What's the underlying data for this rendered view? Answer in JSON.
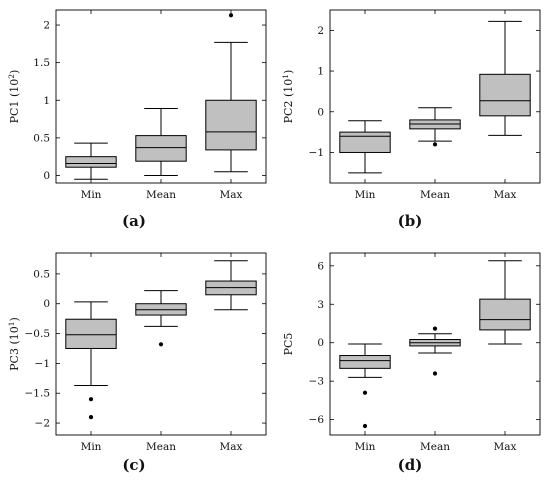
{
  "chart_data": [
    {
      "type": "box",
      "panel_label": "(a)",
      "ylabel": "PC1 (10",
      "ylabel_sup": "2",
      "ylabel_close": ")",
      "categories": [
        "Min",
        "Mean",
        "Max"
      ],
      "yticks": [
        "0",
        "0.5",
        "1",
        "1.5",
        "2"
      ],
      "ytick_values": [
        0,
        0.5,
        1,
        1.5,
        2
      ],
      "ylim": [
        -0.1,
        2.2
      ],
      "boxes": [
        {
          "whisker_low": -0.05,
          "q1": 0.11,
          "median": 0.16,
          "q3": 0.25,
          "whisker_high": 0.43,
          "outliers": []
        },
        {
          "whisker_low": 0.0,
          "q1": 0.19,
          "median": 0.37,
          "q3": 0.53,
          "whisker_high": 0.89,
          "outliers": []
        },
        {
          "whisker_low": 0.05,
          "q1": 0.34,
          "median": 0.58,
          "q3": 1.0,
          "whisker_high": 1.77,
          "outliers": [
            2.13
          ]
        }
      ]
    },
    {
      "type": "box",
      "panel_label": "(b)",
      "ylabel": "PC2 (10",
      "ylabel_sup": "1",
      "ylabel_close": ")",
      "categories": [
        "Min",
        "Mean",
        "Max"
      ],
      "yticks": [
        "−1",
        "0",
        "1",
        "2"
      ],
      "ytick_values": [
        -1,
        0,
        1,
        2
      ],
      "ylim": [
        -1.75,
        2.5
      ],
      "boxes": [
        {
          "whisker_low": -1.5,
          "q1": -1.0,
          "median": -0.6,
          "q3": -0.5,
          "whisker_high": -0.22,
          "outliers": []
        },
        {
          "whisker_low": -0.72,
          "q1": -0.42,
          "median": -0.3,
          "q3": -0.2,
          "whisker_high": 0.1,
          "outliers": [
            -0.8
          ]
        },
        {
          "whisker_low": -0.58,
          "q1": -0.1,
          "median": 0.27,
          "q3": 0.92,
          "whisker_high": 2.22,
          "outliers": []
        }
      ]
    },
    {
      "type": "box",
      "panel_label": "(c)",
      "ylabel": "PC3 (10",
      "ylabel_sup": "1",
      "ylabel_close": ")",
      "categories": [
        "Min",
        "Mean",
        "Max"
      ],
      "yticks": [
        "0.5",
        "0",
        "−0.5",
        "−1",
        "−1.5",
        "−2"
      ],
      "ytick_values": [
        0.5,
        0,
        -0.5,
        -1,
        -1.5,
        -2
      ],
      "ylim": [
        -2.2,
        0.85
      ],
      "boxes": [
        {
          "whisker_low": -1.37,
          "q1": -0.75,
          "median": -0.52,
          "q3": -0.26,
          "whisker_high": 0.03,
          "outliers": [
            -1.6,
            -1.9
          ]
        },
        {
          "whisker_low": -0.38,
          "q1": -0.19,
          "median": -0.1,
          "q3": 0.0,
          "whisker_high": 0.22,
          "outliers": [
            -0.68
          ]
        },
        {
          "whisker_low": -0.1,
          "q1": 0.15,
          "median": 0.27,
          "q3": 0.38,
          "whisker_high": 0.72,
          "outliers": []
        }
      ]
    },
    {
      "type": "box",
      "panel_label": "(d)",
      "ylabel": "PC5",
      "ylabel_sup": "",
      "ylabel_close": "",
      "categories": [
        "Min",
        "Mean",
        "Max"
      ],
      "yticks": [
        "6",
        "3",
        "0",
        "−3",
        "−6"
      ],
      "ytick_values": [
        6,
        3,
        0,
        -3,
        -6
      ],
      "ylim": [
        -7.2,
        7.0
      ],
      "boxes": [
        {
          "whisker_low": -2.7,
          "q1": -2.0,
          "median": -1.4,
          "q3": -1.0,
          "whisker_high": -0.1,
          "outliers": [
            -3.9,
            -6.5
          ]
        },
        {
          "whisker_low": -0.8,
          "q1": -0.25,
          "median": 0.0,
          "q3": 0.25,
          "whisker_high": 0.7,
          "outliers": [
            1.1,
            -2.4
          ]
        },
        {
          "whisker_low": -0.1,
          "q1": 1.0,
          "median": 1.8,
          "q3": 3.4,
          "whisker_high": 6.4,
          "outliers": []
        }
      ]
    }
  ],
  "style": {
    "box_fill": "#c0c0c0",
    "stroke": "#000000",
    "outlier_color": "#000000"
  }
}
